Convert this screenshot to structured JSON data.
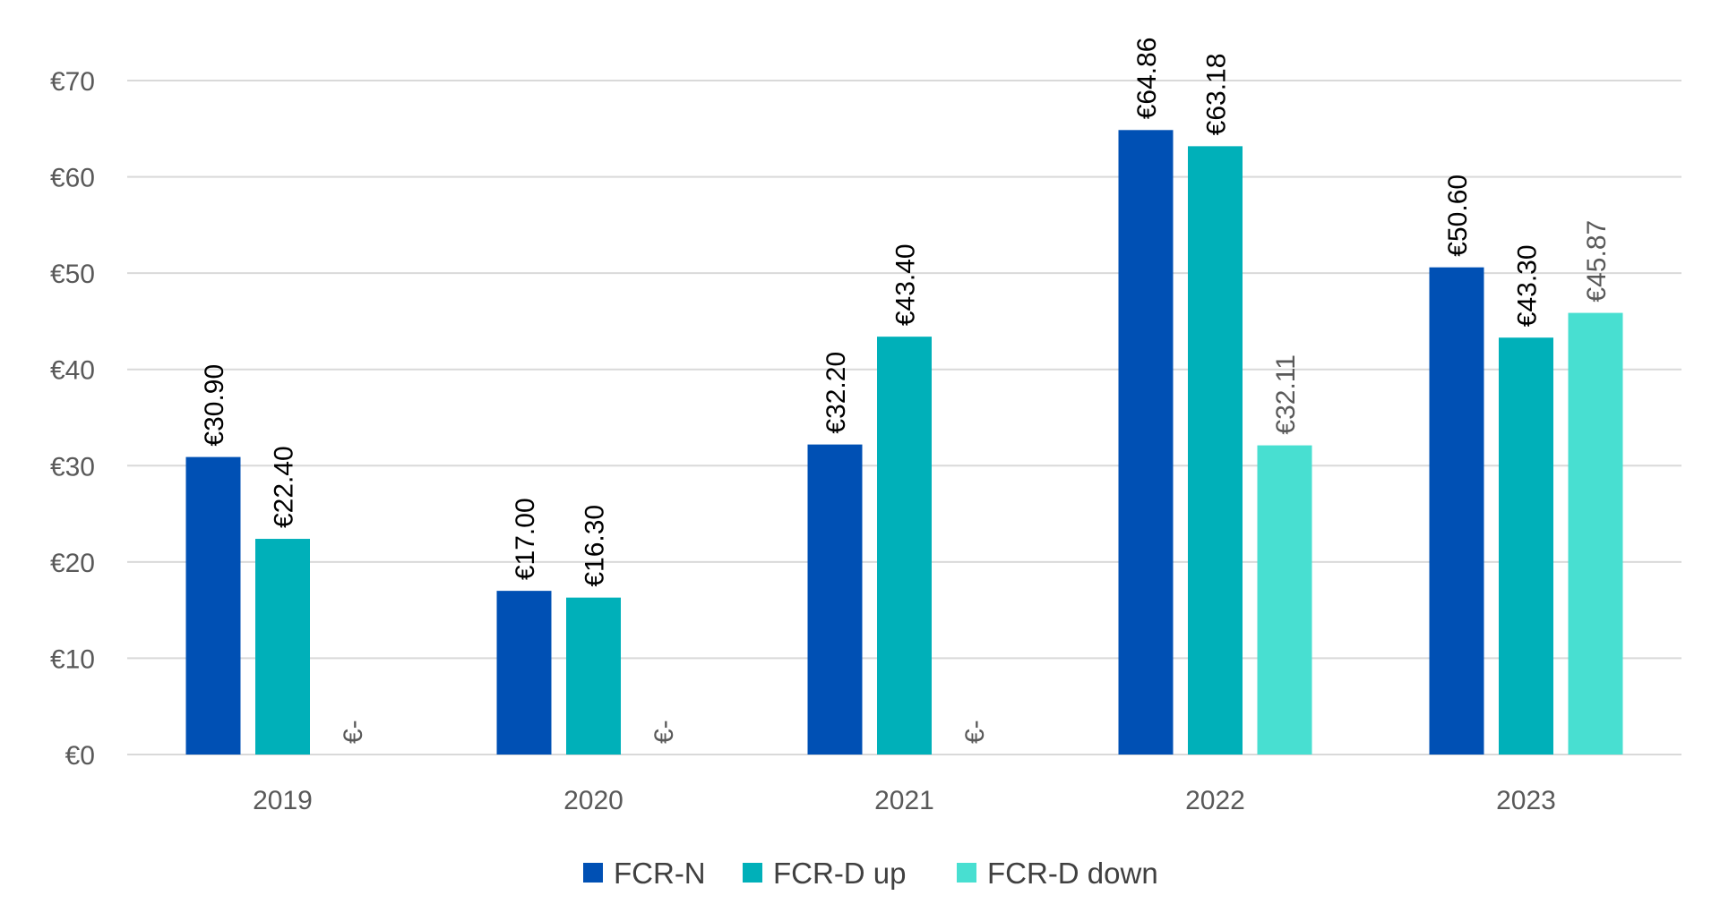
{
  "chart_data": {
    "type": "bar",
    "categories": [
      "2019",
      "2020",
      "2021",
      "2022",
      "2023"
    ],
    "series": [
      {
        "name": "FCR-N",
        "color": "#0050B4",
        "label_color": "#000000",
        "values": [
          30.9,
          17.0,
          32.2,
          64.86,
          50.6
        ],
        "labels": [
          "€30.90",
          "€17.00",
          "€32.20",
          "€64.86",
          "€50.60"
        ]
      },
      {
        "name": "FCR-D up",
        "color": "#00B0B9",
        "label_color": "#000000",
        "values": [
          22.4,
          16.3,
          43.4,
          63.18,
          43.3
        ],
        "labels": [
          "€22.40",
          "€16.30",
          "€43.40",
          "€63.18",
          "€43.30"
        ]
      },
      {
        "name": "FCR-D down",
        "color": "#48DFD1",
        "label_color": "#595959",
        "values": [
          0,
          0,
          0,
          32.11,
          45.87
        ],
        "labels": [
          "€-",
          "€-",
          "€-",
          "€32.11",
          "€45.87"
        ]
      }
    ],
    "y_ticks": [
      0,
      10,
      20,
      30,
      40,
      50,
      60,
      70
    ],
    "y_tick_labels": [
      "€0",
      "€10",
      "€20",
      "€30",
      "€40",
      "€50",
      "€60",
      "€70"
    ],
    "ylim": [
      0,
      70
    ],
    "grid": true,
    "legend_position": "bottom-center"
  }
}
